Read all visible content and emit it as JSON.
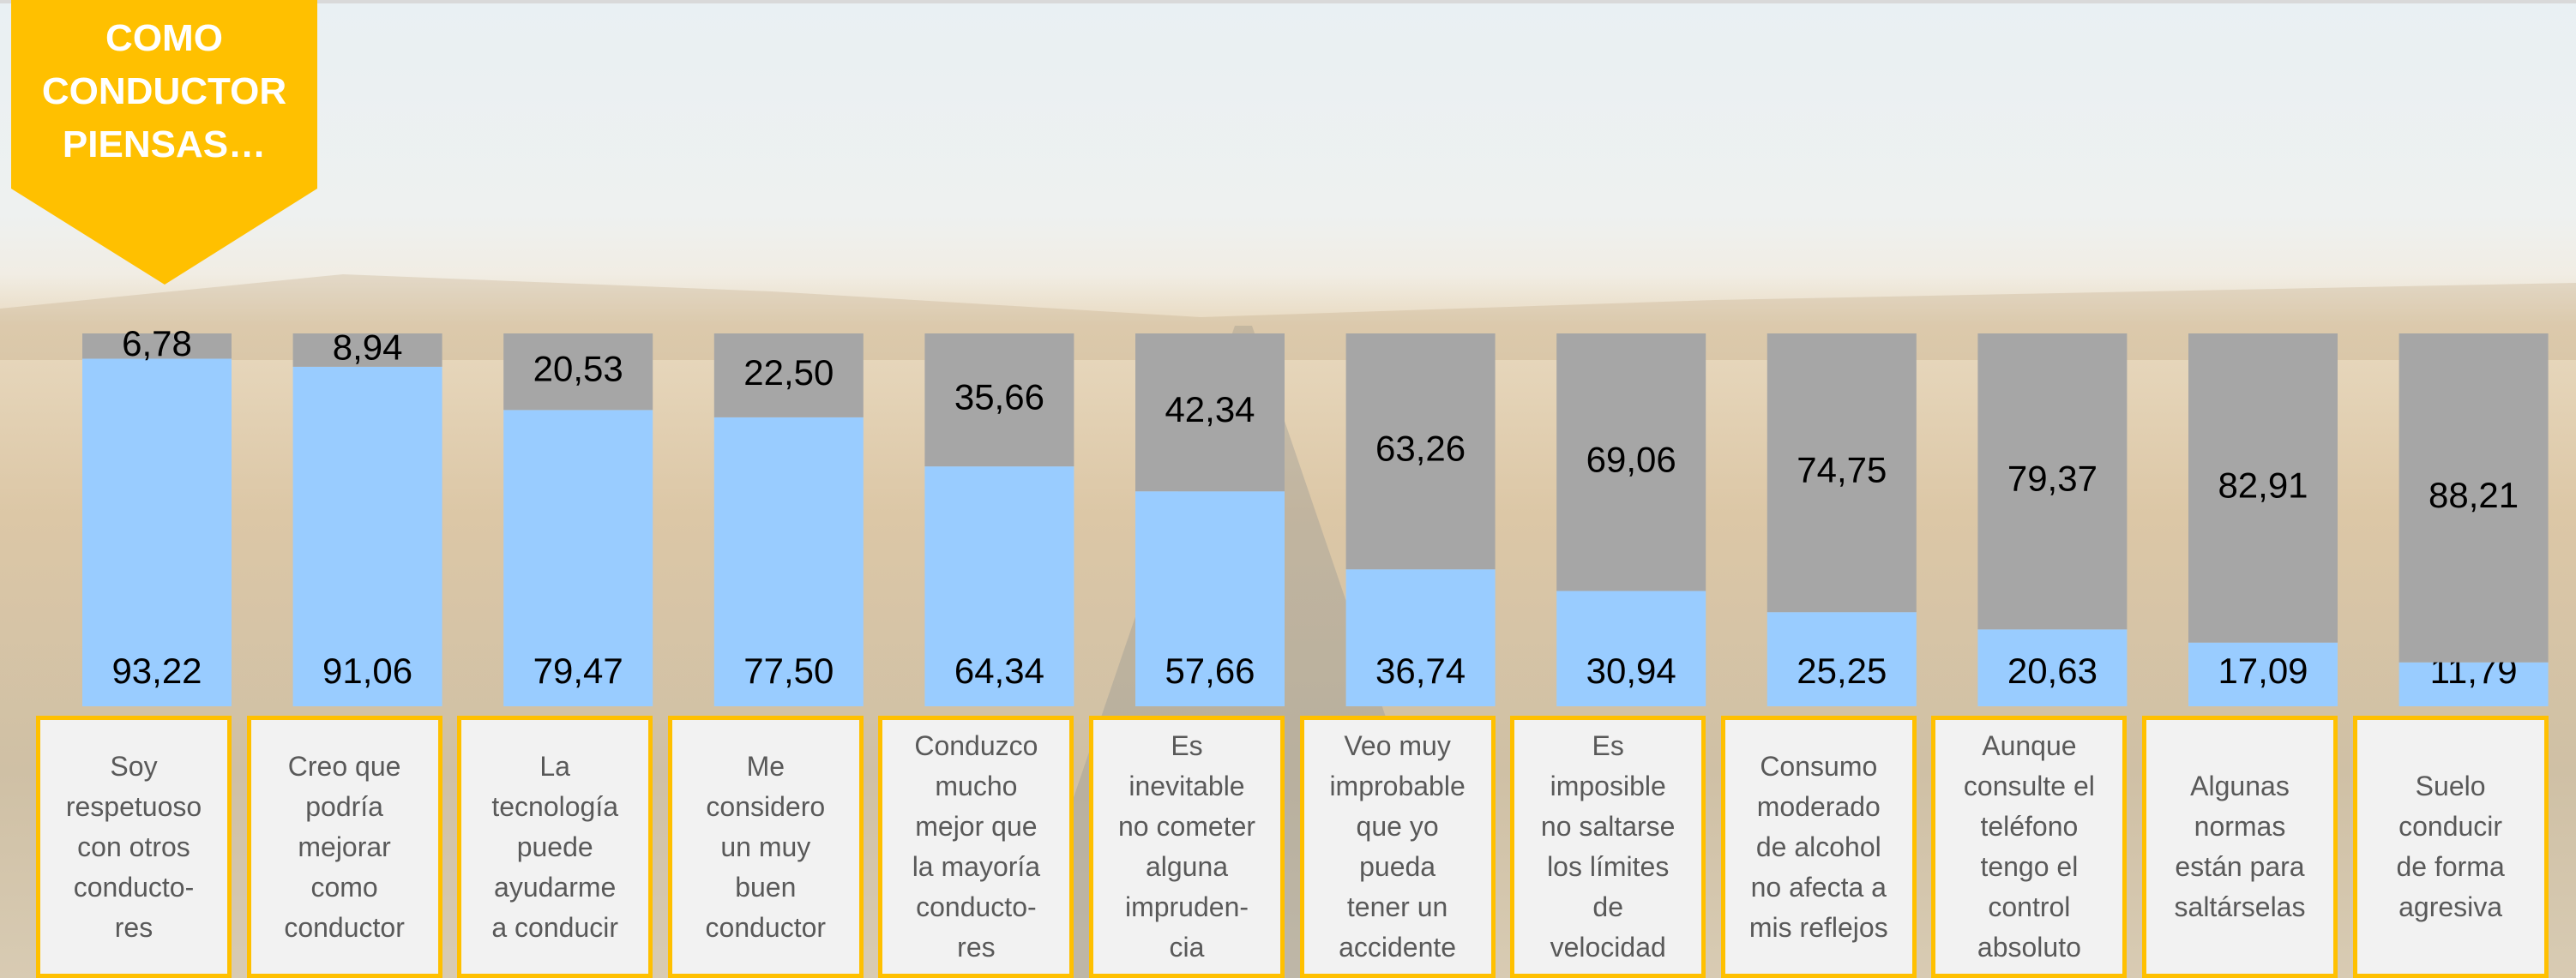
{
  "chart_data": {
    "type": "stacked_bar",
    "title": "COMO\nCONDUCTOR\nPIENSAS…",
    "categories": [
      "Soy\nrespetuoso\ncon otros\nconducto-\nres",
      "Creo que\npodría\nmejorar\ncomo\nconductor",
      "La\ntecnología\npuede\nayudarme\na conducir",
      "Me\nconsidero\nun muy\nbuen\nconductor",
      "Conduzco\nmucho\nmejor que\nla mayoría\nconducto-\nres",
      "Es\ninevitable\nno cometer\nalguna\nimpruden-\ncia",
      "Veo muy\nimprobable\nque yo\npueda\ntener un\naccidente",
      "Es\nimposible\nno saltarse\nlos límites\nde\nvelocidad",
      "Consumo\nmoderado\nde alcohol\nno afecta a\nmis reflejos",
      "Aunque\nconsulte el\nteléfono\ntengo el\ncontrol\nabsoluto",
      "Algunas\nnormas\nestán para\nsaltárselas",
      "Suelo\nconducir\nde forma\nagresiva"
    ],
    "series": [
      {
        "color": "#99ccff",
        "values": [
          93.22,
          91.06,
          79.47,
          77.5,
          64.34,
          57.66,
          36.74,
          30.94,
          25.25,
          20.63,
          17.09,
          11.79
        ],
        "value_labels": [
          "93,22",
          "91,06",
          "79,47",
          "77,50",
          "64,34",
          "57,66",
          "36,74",
          "30,94",
          "25,25",
          "20,63",
          "17,09",
          "11,79"
        ]
      },
      {
        "color": "#a6a6a6",
        "values": [
          6.78,
          8.94,
          20.53,
          22.5,
          35.66,
          42.34,
          63.26,
          69.06,
          74.75,
          79.37,
          82.91,
          88.21
        ],
        "value_labels": [
          "6,78",
          "8,94",
          "20,53",
          "22,50",
          "35,66",
          "42,34",
          "63,26",
          "69,06",
          "74,75",
          "79,37",
          "82,91",
          "88,21"
        ]
      }
    ],
    "ylim": [
      0,
      100
    ]
  }
}
